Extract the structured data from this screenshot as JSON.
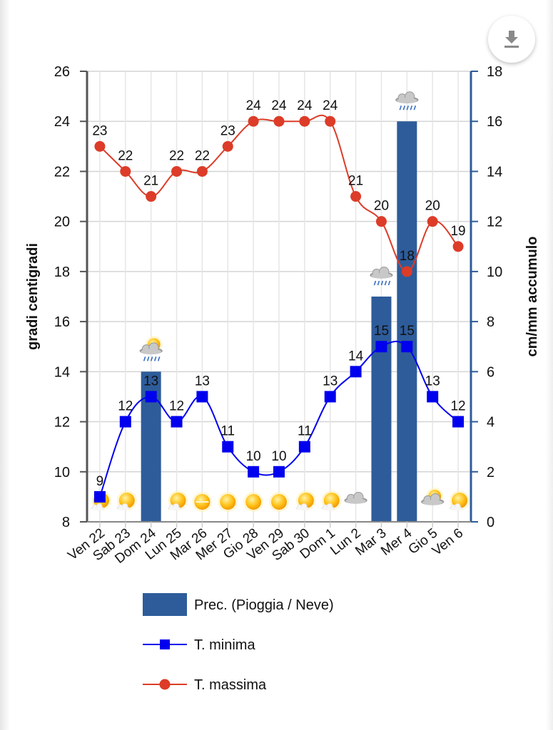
{
  "download_button": {
    "icon": "download-icon"
  },
  "chart_data": {
    "type": "bar+line",
    "categories": [
      "Ven 22",
      "Sab 23",
      "Dom 24",
      "Lun 25",
      "Mar 26",
      "Mer 27",
      "Gio 28",
      "Ven 29",
      "Sab 30",
      "Dom 1",
      "Lun 2",
      "Mar 3",
      "Mer 4",
      "Gio 5",
      "Ven 6"
    ],
    "series": [
      {
        "name": "Prec. (Pioggia / Neve)",
        "type": "bar",
        "axis": "right",
        "color": "#2e5c9a",
        "values": [
          0,
          0,
          6,
          0,
          0,
          0,
          0,
          0,
          0,
          0,
          0,
          9,
          16,
          0,
          0
        ]
      },
      {
        "name": "T. minima",
        "type": "line",
        "marker": "square",
        "axis": "left",
        "color": "#0000ee",
        "values": [
          9,
          12,
          13,
          12,
          13,
          11,
          10,
          10,
          11,
          13,
          14,
          15,
          15,
          13,
          12
        ]
      },
      {
        "name": "T. massima",
        "type": "line",
        "marker": "circle",
        "axis": "left",
        "color": "#dc3c28",
        "values": [
          23,
          22,
          21,
          22,
          22,
          23,
          24,
          24,
          24,
          24,
          21,
          20,
          18,
          20,
          19
        ]
      }
    ],
    "weather_icons": [
      "sun-cloud",
      "sun-cloud",
      "sun-rain",
      "sun-cloud",
      "sun-haze",
      "sun",
      "sun",
      "sun",
      "sun-cloud",
      "sun-cloud",
      "cloudy",
      "rain",
      "rain",
      "sun-cloudy",
      "sun-cloud"
    ],
    "ylabel": "gradi centigradi",
    "y2label": "cm/mm accumulo",
    "ylim": [
      8,
      26
    ],
    "yticks": [
      8,
      10,
      12,
      14,
      16,
      18,
      20,
      22,
      24,
      26
    ],
    "y2lim": [
      0,
      18
    ],
    "y2ticks": [
      0,
      2,
      4,
      6,
      8,
      10,
      12,
      14,
      16,
      18
    ],
    "grid": true,
    "legend": "bottom"
  }
}
